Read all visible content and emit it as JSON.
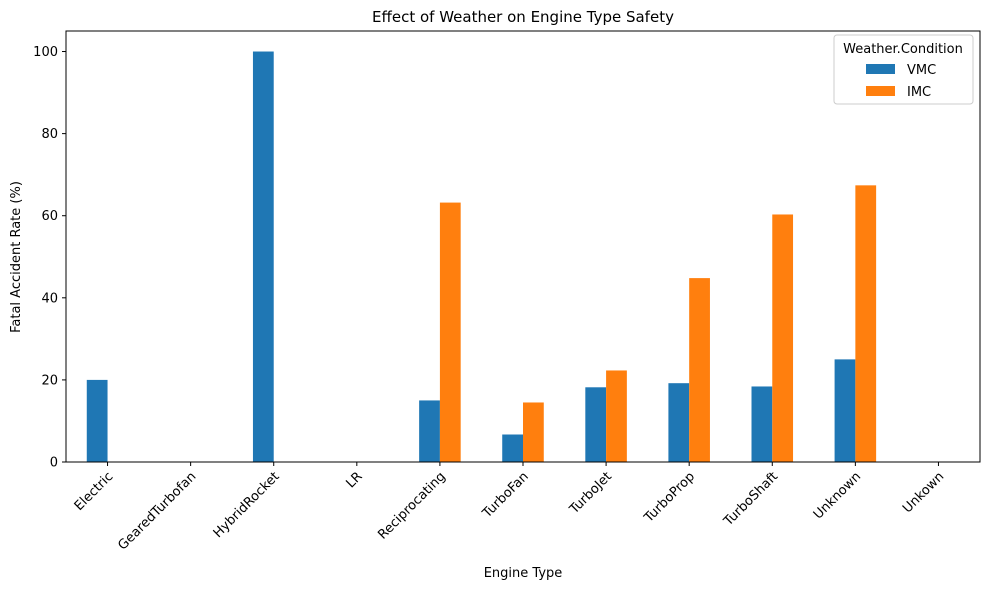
{
  "chart_data": {
    "type": "bar",
    "title": "Effect of Weather on Engine Type Safety",
    "xlabel": "Engine Type",
    "ylabel": "Fatal Accident Rate (%)",
    "ylim": [
      0,
      105
    ],
    "yticks": [
      0,
      20,
      40,
      60,
      80,
      100
    ],
    "grid": false,
    "legend_title": "Weather.Condition",
    "legend_position": "top-right",
    "categories": [
      "Electric",
      "GearedTurbofan",
      "HybridRocket",
      "LR",
      "Reciprocating",
      "TurboFan",
      "TurboJet",
      "TurboProp",
      "TurboShaft",
      "Unknown",
      "Unkown"
    ],
    "series": [
      {
        "name": "VMC",
        "color": "#1f77b4",
        "values": [
          20.0,
          0,
          100.0,
          0,
          15.0,
          6.7,
          18.2,
          19.2,
          18.4,
          25.0,
          0
        ]
      },
      {
        "name": "IMC",
        "color": "#ff7f0e",
        "values": [
          0,
          0,
          0,
          0,
          63.2,
          14.5,
          22.3,
          44.8,
          60.3,
          67.4,
          0
        ]
      }
    ]
  }
}
